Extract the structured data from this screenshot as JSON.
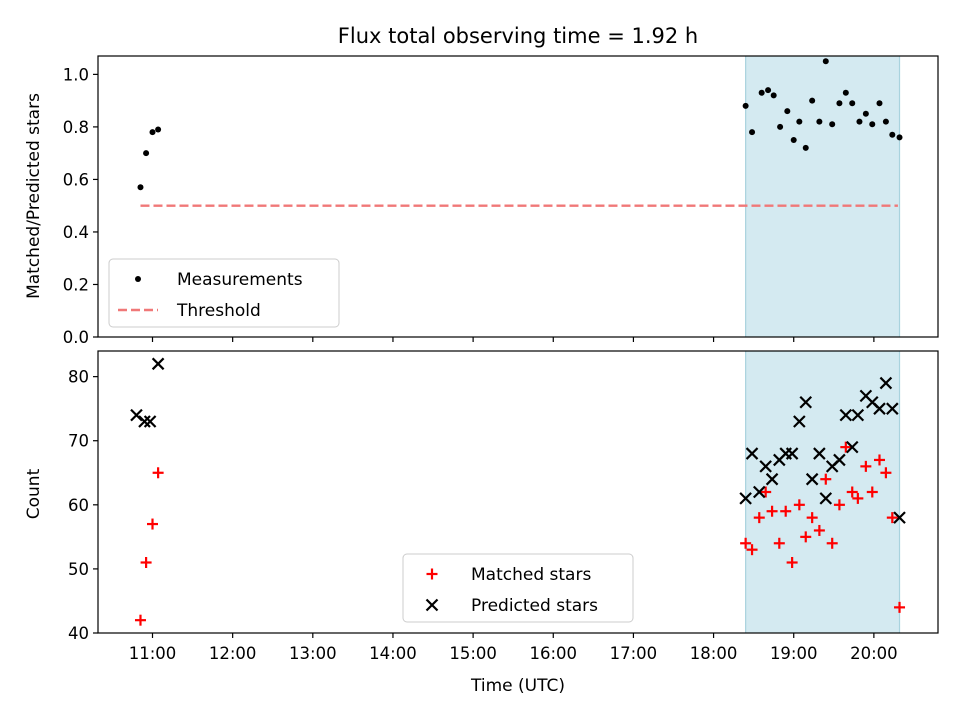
{
  "figure": {
    "title": "Flux total observing time = 1.92 h",
    "xlabel": "Time (UTC)",
    "x_ticks": [
      "11:00",
      "12:00",
      "13:00",
      "14:00",
      "15:00",
      "16:00",
      "17:00",
      "18:00",
      "19:00",
      "20:00"
    ],
    "x_tick_hours": [
      11,
      12,
      13,
      14,
      15,
      16,
      17,
      18,
      19,
      20
    ],
    "xlim_hours": [
      10.32,
      20.8
    ],
    "shaded_span_hours": [
      18.4,
      20.32
    ],
    "shade_color": "#d4eaf1"
  },
  "chart_data": [
    {
      "type": "scatter",
      "ylabel": "Matched/Predicted stars",
      "ylim": [
        0,
        1.07
      ],
      "yticks": [
        "0.0",
        "0.2",
        "0.4",
        "0.6",
        "0.8",
        "1.0"
      ],
      "ytick_values": [
        0,
        0.2,
        0.4,
        0.6,
        0.8,
        1.0
      ],
      "legend_position": "lower-left",
      "series": [
        {
          "name": "Measurements",
          "marker": "dot",
          "color": "#000000",
          "x_hours": [
            10.85,
            10.92,
            11.0,
            11.07,
            18.4,
            18.48,
            18.6,
            18.68,
            18.75,
            18.83,
            18.92,
            19.0,
            19.07,
            19.15,
            19.23,
            19.32,
            19.4,
            19.48,
            19.57,
            19.65,
            19.73,
            19.82,
            19.9,
            19.98,
            20.07,
            20.15,
            20.23,
            20.32
          ],
          "y": [
            0.57,
            0.7,
            0.78,
            0.79,
            0.88,
            0.78,
            0.93,
            0.94,
            0.92,
            0.8,
            0.86,
            0.75,
            0.82,
            0.72,
            0.9,
            0.82,
            1.05,
            0.81,
            0.89,
            0.93,
            0.89,
            0.82,
            0.85,
            0.81,
            0.89,
            0.82,
            0.77,
            0.76
          ]
        },
        {
          "name": "Threshold",
          "line": "dashed",
          "color": "#f07878",
          "x_hours": [
            10.85,
            20.3
          ],
          "y": [
            0.5,
            0.5
          ]
        }
      ]
    },
    {
      "type": "scatter",
      "ylabel": "Count",
      "ylim": [
        40,
        84
      ],
      "yticks": [
        "40",
        "50",
        "60",
        "70",
        "80"
      ],
      "ytick_values": [
        40,
        50,
        60,
        70,
        80
      ],
      "legend_position": "lower-center",
      "series": [
        {
          "name": "Matched stars",
          "marker": "plus",
          "color": "#ff0000",
          "x_hours": [
            10.85,
            10.92,
            11.0,
            11.07,
            18.4,
            18.48,
            18.57,
            18.65,
            18.73,
            18.82,
            18.9,
            18.98,
            19.07,
            19.15,
            19.23,
            19.32,
            19.4,
            19.48,
            19.57,
            19.65,
            19.73,
            19.8,
            19.9,
            19.98,
            20.07,
            20.15,
            20.23,
            20.32
          ],
          "y": [
            42,
            51,
            57,
            65,
            54,
            53,
            58,
            62,
            59,
            54,
            59,
            51,
            60,
            55,
            58,
            56,
            64,
            54,
            60,
            69,
            62,
            61,
            66,
            62,
            67,
            65,
            58,
            44
          ]
        },
        {
          "name": "Predicted stars",
          "marker": "x",
          "color": "#000000",
          "x_hours": [
            10.8,
            10.9,
            10.97,
            11.07,
            18.4,
            18.48,
            18.57,
            18.65,
            18.73,
            18.82,
            18.9,
            18.98,
            19.07,
            19.15,
            19.23,
            19.32,
            19.4,
            19.48,
            19.57,
            19.65,
            19.73,
            19.8,
            19.9,
            19.98,
            20.07,
            20.15,
            20.23,
            20.32
          ],
          "y": [
            74,
            73,
            73,
            82,
            61,
            68,
            62,
            66,
            64,
            67,
            68,
            68,
            73,
            76,
            64,
            68,
            61,
            66,
            67,
            74,
            69,
            74,
            77,
            76,
            75,
            79,
            75,
            58
          ]
        }
      ]
    }
  ]
}
